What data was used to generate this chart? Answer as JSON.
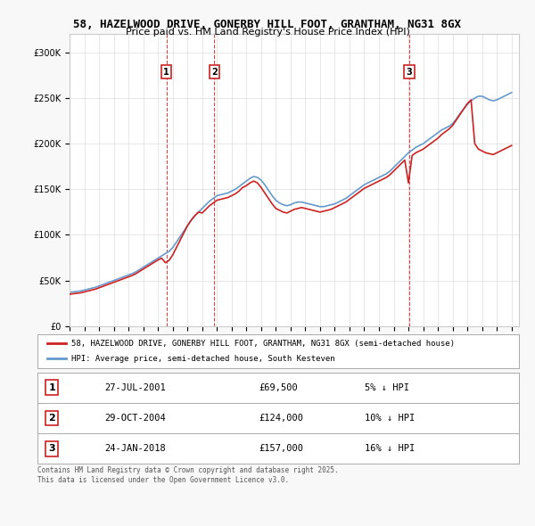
{
  "title_line1": "58, HAZELWOOD DRIVE, GONERBY HILL FOOT, GRANTHAM, NG31 8GX",
  "title_line2": "Price paid vs. HM Land Registry's House Price Index (HPI)",
  "legend_property": "58, HAZELWOOD DRIVE, GONERBY HILL FOOT, GRANTHAM, NG31 8GX (semi-detached house)",
  "legend_hpi": "HPI: Average price, semi-detached house, South Kesteven",
  "sales": [
    {
      "label": "1",
      "date_str": "27-JUL-2001",
      "price": 69500,
      "pct": "5% ↓ HPI",
      "date_num": 2001.57
    },
    {
      "label": "2",
      "date_str": "29-OCT-2004",
      "price": 124000,
      "pct": "10% ↓ HPI",
      "date_num": 2004.83
    },
    {
      "label": "3",
      "date_str": "24-JAN-2018",
      "price": 157000,
      "pct": "16% ↓ HPI",
      "date_num": 2018.07
    }
  ],
  "hpi_dates": [
    1995.0,
    1995.25,
    1995.5,
    1995.75,
    1996.0,
    1996.25,
    1996.5,
    1996.75,
    1997.0,
    1997.25,
    1997.5,
    1997.75,
    1998.0,
    1998.25,
    1998.5,
    1998.75,
    1999.0,
    1999.25,
    1999.5,
    1999.75,
    2000.0,
    2000.25,
    2000.5,
    2000.75,
    2001.0,
    2001.25,
    2001.5,
    2001.75,
    2002.0,
    2002.25,
    2002.5,
    2002.75,
    2003.0,
    2003.25,
    2003.5,
    2003.75,
    2004.0,
    2004.25,
    2004.5,
    2004.75,
    2005.0,
    2005.25,
    2005.5,
    2005.75,
    2006.0,
    2006.25,
    2006.5,
    2006.75,
    2007.0,
    2007.25,
    2007.5,
    2007.75,
    2008.0,
    2008.25,
    2008.5,
    2008.75,
    2009.0,
    2009.25,
    2009.5,
    2009.75,
    2010.0,
    2010.25,
    2010.5,
    2010.75,
    2011.0,
    2011.25,
    2011.5,
    2011.75,
    2012.0,
    2012.25,
    2012.5,
    2012.75,
    2013.0,
    2013.25,
    2013.5,
    2013.75,
    2014.0,
    2014.25,
    2014.5,
    2014.75,
    2015.0,
    2015.25,
    2015.5,
    2015.75,
    2016.0,
    2016.25,
    2016.5,
    2016.75,
    2017.0,
    2017.25,
    2017.5,
    2017.75,
    2018.0,
    2018.25,
    2018.5,
    2018.75,
    2019.0,
    2019.25,
    2019.5,
    2019.75,
    2020.0,
    2020.25,
    2020.5,
    2020.75,
    2021.0,
    2021.25,
    2021.5,
    2021.75,
    2022.0,
    2022.25,
    2022.5,
    2022.75,
    2023.0,
    2023.25,
    2023.5,
    2023.75,
    2024.0,
    2024.25,
    2024.5,
    2024.75,
    2025.0
  ],
  "hpi_values": [
    37000,
    37500,
    38000,
    38500,
    39500,
    40500,
    41500,
    42500,
    44000,
    45500,
    47000,
    48500,
    50000,
    51500,
    53000,
    54500,
    56000,
    57500,
    59500,
    62000,
    64500,
    67000,
    69500,
    72000,
    74500,
    77000,
    79500,
    82000,
    86000,
    92000,
    98000,
    104000,
    110000,
    116000,
    121000,
    125000,
    129000,
    133000,
    137000,
    140000,
    143000,
    144000,
    145000,
    146000,
    148000,
    150000,
    153000,
    156000,
    159000,
    162000,
    164000,
    163000,
    160000,
    155000,
    149000,
    143000,
    138000,
    135000,
    133000,
    132000,
    133000,
    135000,
    136000,
    136000,
    135000,
    134000,
    133000,
    132000,
    131000,
    131000,
    132000,
    133000,
    134000,
    136000,
    138000,
    140000,
    143000,
    146000,
    149000,
    152000,
    155000,
    157000,
    159000,
    161000,
    163000,
    165000,
    167000,
    170000,
    174000,
    178000,
    182000,
    186000,
    190000,
    193000,
    196000,
    198000,
    200000,
    203000,
    206000,
    209000,
    212000,
    215000,
    217000,
    219000,
    222000,
    227000,
    233000,
    238000,
    243000,
    247000,
    250000,
    252000,
    252000,
    250000,
    248000,
    247000,
    248000,
    250000,
    252000,
    254000,
    256000
  ],
  "property_dates": [
    1995.0,
    1995.25,
    1995.5,
    1995.75,
    1996.0,
    1996.25,
    1996.5,
    1996.75,
    1997.0,
    1997.25,
    1997.5,
    1997.75,
    1998.0,
    1998.25,
    1998.5,
    1998.75,
    1999.0,
    1999.25,
    1999.5,
    1999.75,
    2000.0,
    2000.25,
    2000.5,
    2000.75,
    2001.0,
    2001.25,
    2001.5,
    2001.75,
    2002.0,
    2002.25,
    2002.5,
    2002.75,
    2003.0,
    2003.25,
    2003.5,
    2003.75,
    2004.0,
    2004.25,
    2004.5,
    2004.75,
    2005.0,
    2005.25,
    2005.5,
    2005.75,
    2006.0,
    2006.25,
    2006.5,
    2006.75,
    2007.0,
    2007.25,
    2007.5,
    2007.75,
    2008.0,
    2008.25,
    2008.5,
    2008.75,
    2009.0,
    2009.25,
    2009.5,
    2009.75,
    2010.0,
    2010.25,
    2010.5,
    2010.75,
    2011.0,
    2011.25,
    2011.5,
    2011.75,
    2012.0,
    2012.25,
    2012.5,
    2012.75,
    2013.0,
    2013.25,
    2013.5,
    2013.75,
    2014.0,
    2014.25,
    2014.5,
    2014.75,
    2015.0,
    2015.25,
    2015.5,
    2015.75,
    2016.0,
    2016.25,
    2016.5,
    2016.75,
    2017.0,
    2017.25,
    2017.5,
    2017.75,
    2018.0,
    2018.25,
    2018.5,
    2018.75,
    2019.0,
    2019.25,
    2019.5,
    2019.75,
    2020.0,
    2020.25,
    2020.5,
    2020.75,
    2021.0,
    2021.25,
    2021.5,
    2021.75,
    2022.0,
    2022.25,
    2022.5,
    2022.75,
    2023.0,
    2023.25,
    2023.5,
    2023.75,
    2024.0,
    2024.25,
    2024.5,
    2024.75,
    2025.0
  ],
  "property_values": [
    35000,
    35500,
    36000,
    36500,
    37500,
    38500,
    39500,
    40500,
    42000,
    43500,
    45000,
    46500,
    48000,
    49500,
    51000,
    52500,
    54000,
    55500,
    57500,
    60000,
    62500,
    65000,
    67500,
    70000,
    72500,
    74500,
    69500,
    72000,
    78000,
    86000,
    94000,
    102000,
    110000,
    116000,
    121000,
    125000,
    124000,
    128000,
    132000,
    135000,
    138000,
    139000,
    140000,
    141000,
    143000,
    145000,
    148000,
    152000,
    154000,
    157000,
    159000,
    157000,
    152000,
    146000,
    140000,
    134000,
    129000,
    127000,
    125000,
    124000,
    126000,
    128000,
    129000,
    130000,
    129000,
    128000,
    127000,
    126000,
    125000,
    126000,
    127000,
    128000,
    130000,
    132000,
    134000,
    136000,
    139000,
    142000,
    145000,
    148000,
    151000,
    153000,
    155000,
    157000,
    159000,
    161000,
    163000,
    166000,
    170000,
    174000,
    178000,
    182000,
    157000,
    187000,
    190000,
    192000,
    194000,
    197000,
    200000,
    203000,
    206000,
    210000,
    213000,
    216000,
    220000,
    226000,
    232000,
    238000,
    244000,
    248000,
    200000,
    194000,
    192000,
    190000,
    189000,
    188000,
    190000,
    192000,
    194000,
    196000,
    198000,
    200000,
    202000
  ],
  "xlim": [
    1995.0,
    2025.5
  ],
  "ylim": [
    0,
    320000
  ],
  "yticks": [
    0,
    50000,
    100000,
    150000,
    200000,
    250000,
    300000
  ],
  "xticks": [
    1995,
    1996,
    1997,
    1998,
    1999,
    2000,
    2001,
    2002,
    2003,
    2004,
    2005,
    2006,
    2007,
    2008,
    2009,
    2010,
    2011,
    2012,
    2013,
    2014,
    2015,
    2016,
    2017,
    2018,
    2019,
    2020,
    2021,
    2022,
    2023,
    2024,
    2025
  ],
  "bg_color": "#f8f8f8",
  "plot_bg_color": "#ffffff",
  "grid_color": "#dddddd",
  "red_color": "#cc2222",
  "blue_color": "#6699cc",
  "vline_color": "#dd4444",
  "marker_box_color": "#cc2222",
  "footer_text": "Contains HM Land Registry data © Crown copyright and database right 2025.\nThis data is licensed under the Open Government Licence v3.0."
}
